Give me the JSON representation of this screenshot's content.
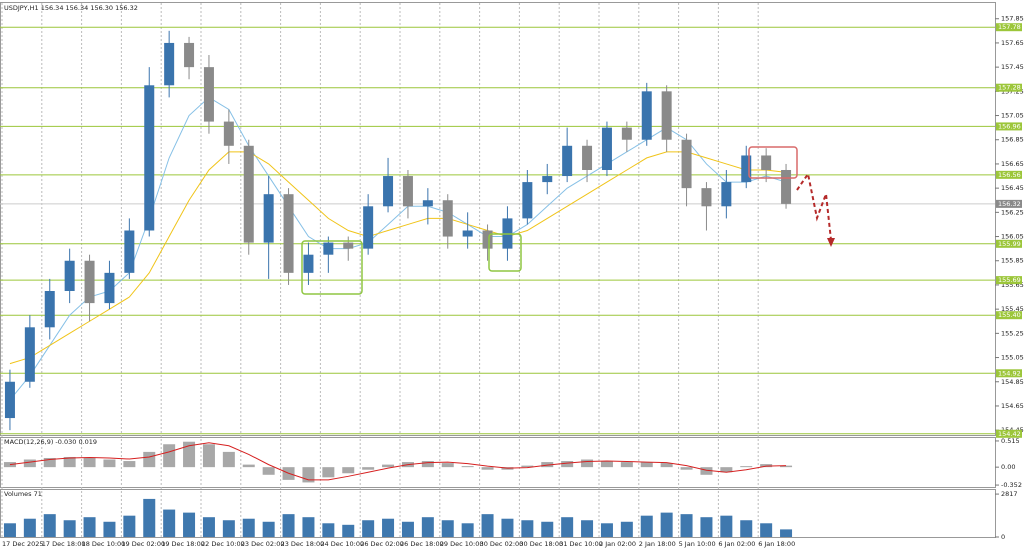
{
  "chart_data": {
    "type": "candlestick",
    "title": "USDJPY,H1  156.34 156.34 156.30 156.32",
    "x_labels": [
      "17 Dec 2025",
      "17 Dec 18:00",
      "18 Dec 10:00",
      "19 Dec 02:00",
      "19 Dec 18:00",
      "22 Dec 10:00",
      "23 Dec 02:00",
      "23 Dec 18:00",
      "24 Dec 10:00",
      "26 Dec 02:00",
      "26 Dec 18:00",
      "29 Dec 10:00",
      "30 Dec 02:00",
      "30 Dec 18:00",
      "31 Dec 10:00",
      "2 Jan 02:00",
      "2 Jan 18:00",
      "5 Jan 10:00",
      "6 Jan 02:00",
      "6 Jan 18:00"
    ],
    "open": [
      154.55,
      154.85,
      155.3,
      155.6,
      155.85,
      155.5,
      155.75,
      156.1,
      157.3,
      157.65,
      157.45,
      157.0,
      156.8,
      156.0,
      156.4,
      155.75,
      155.9,
      156.0,
      155.95,
      156.3,
      156.55,
      156.3,
      156.35,
      156.05,
      156.1,
      155.95,
      156.2,
      156.5,
      156.55,
      156.8,
      156.6,
      156.95,
      156.85,
      157.25,
      156.85,
      156.45,
      156.3,
      156.5,
      156.72,
      156.6
    ],
    "high": [
      154.95,
      155.4,
      155.7,
      155.95,
      155.9,
      155.85,
      156.2,
      157.45,
      157.75,
      157.7,
      157.55,
      157.1,
      156.85,
      156.55,
      156.45,
      156.0,
      156.05,
      156.05,
      156.4,
      156.7,
      156.6,
      156.45,
      156.4,
      156.25,
      156.15,
      156.3,
      156.6,
      156.65,
      156.95,
      156.85,
      157.0,
      157.0,
      157.32,
      157.3,
      156.9,
      156.5,
      156.6,
      156.8,
      156.78,
      156.65
    ],
    "low": [
      154.45,
      154.8,
      155.2,
      155.5,
      155.35,
      155.45,
      155.7,
      156.05,
      157.2,
      157.35,
      156.9,
      156.65,
      155.9,
      155.7,
      155.65,
      155.65,
      155.75,
      155.85,
      155.9,
      156.25,
      156.2,
      156.15,
      155.95,
      155.95,
      155.85,
      155.85,
      156.15,
      156.4,
      156.5,
      156.5,
      156.55,
      156.75,
      156.8,
      156.75,
      156.3,
      156.1,
      156.2,
      156.45,
      156.5,
      156.28
    ],
    "close": [
      154.85,
      155.3,
      155.6,
      155.85,
      155.5,
      155.75,
      156.1,
      157.3,
      157.65,
      157.45,
      157.0,
      156.8,
      156.0,
      156.4,
      155.75,
      155.9,
      156.0,
      155.95,
      156.3,
      156.55,
      156.3,
      156.35,
      156.05,
      156.1,
      155.95,
      156.2,
      156.5,
      156.55,
      156.8,
      156.6,
      156.95,
      156.85,
      157.25,
      156.85,
      156.45,
      156.3,
      156.5,
      156.72,
      156.6,
      156.32
    ],
    "up_color": "#3a74ad",
    "down_color": "#8a8a8a",
    "ma": [
      {
        "color": "#86c0e6",
        "values": [
          154.7,
          154.9,
          155.15,
          155.4,
          155.55,
          155.6,
          155.75,
          156.2,
          156.7,
          157.05,
          157.2,
          157.1,
          156.8,
          156.55,
          156.3,
          156.05,
          155.95,
          155.95,
          156.0,
          156.15,
          156.3,
          156.3,
          156.25,
          156.15,
          156.05,
          156.05,
          156.15,
          156.3,
          156.45,
          156.55,
          156.65,
          156.75,
          156.85,
          156.95,
          156.85,
          156.65,
          156.5,
          156.5,
          156.55,
          156.5
        ]
      },
      {
        "color": "#f0c419",
        "values": [
          155.0,
          155.05,
          155.15,
          155.25,
          155.35,
          155.45,
          155.55,
          155.75,
          156.05,
          156.35,
          156.6,
          156.75,
          156.75,
          156.65,
          156.5,
          156.35,
          156.2,
          156.1,
          156.05,
          156.1,
          156.15,
          156.2,
          156.2,
          156.15,
          156.1,
          156.05,
          156.1,
          156.2,
          156.3,
          156.4,
          156.5,
          156.6,
          156.7,
          156.75,
          156.75,
          156.7,
          156.65,
          156.6,
          156.6,
          156.58
        ]
      }
    ],
    "ylim": [
      154.41,
      157.98
    ],
    "yticks": [
      157.85,
      157.65,
      157.45,
      157.25,
      157.05,
      156.85,
      156.65,
      156.45,
      156.25,
      156.05,
      155.85,
      155.65,
      155.45,
      155.25,
      155.05,
      154.85,
      154.65,
      154.45
    ],
    "levels": [
      157.78,
      157.28,
      156.96,
      156.56,
      155.99,
      155.69,
      {
        "value": 155.4,
        "label": "155.40"
      },
      154.92,
      154.42
    ],
    "level_color": "#9cc63a",
    "current_price": 156.32,
    "macd": {
      "title": "MACD(12,26,9) -0.030 0.019",
      "ylim": [
        -0.39,
        0.573
      ],
      "yticks": [
        0.515,
        {
          "value": 0,
          "label": "0.00"
        },
        -0.352
      ],
      "histogram": [
        0.1,
        0.15,
        0.18,
        0.2,
        0.18,
        0.15,
        0.12,
        0.3,
        0.45,
        0.5,
        0.45,
        0.3,
        0.05,
        -0.15,
        -0.25,
        -0.3,
        -0.2,
        -0.12,
        -0.05,
        0.05,
        0.1,
        0.12,
        0.08,
        0.02,
        -0.05,
        -0.05,
        0.03,
        0.1,
        0.12,
        0.15,
        0.12,
        0.1,
        0.1,
        0.08,
        -0.05,
        -0.15,
        -0.1,
        0.02,
        0.06,
        0.03
      ],
      "signal": [
        0.05,
        0.1,
        0.15,
        0.18,
        0.19,
        0.18,
        0.16,
        0.2,
        0.3,
        0.42,
        0.48,
        0.42,
        0.25,
        0.05,
        -0.12,
        -0.25,
        -0.25,
        -0.18,
        -0.1,
        -0.02,
        0.05,
        0.09,
        0.1,
        0.07,
        0.02,
        -0.02,
        -0.01,
        0.04,
        0.08,
        0.11,
        0.12,
        0.11,
        0.1,
        0.09,
        0.03,
        -0.06,
        -0.1,
        -0.05,
        0.02,
        0.03
      ],
      "histogram_color": "#a8a8a8",
      "signal_color": "#d62020"
    },
    "volumes": {
      "title": "Volumes 71",
      "ylim": [
        0,
        3085
      ],
      "yticks": [
        2817,
        0
      ],
      "color": "#3f78ae",
      "values": [
        900,
        1200,
        1500,
        1100,
        1300,
        1000,
        1400,
        2500,
        1800,
        1600,
        1300,
        1100,
        1200,
        1000,
        1500,
        1300,
        900,
        800,
        1100,
        1200,
        1000,
        1300,
        1100,
        900,
        1500,
        1200,
        1100,
        1000,
        1300,
        1100,
        900,
        1000,
        1400,
        1600,
        1500,
        1300,
        1400,
        1100,
        900,
        500
      ]
    }
  }
}
